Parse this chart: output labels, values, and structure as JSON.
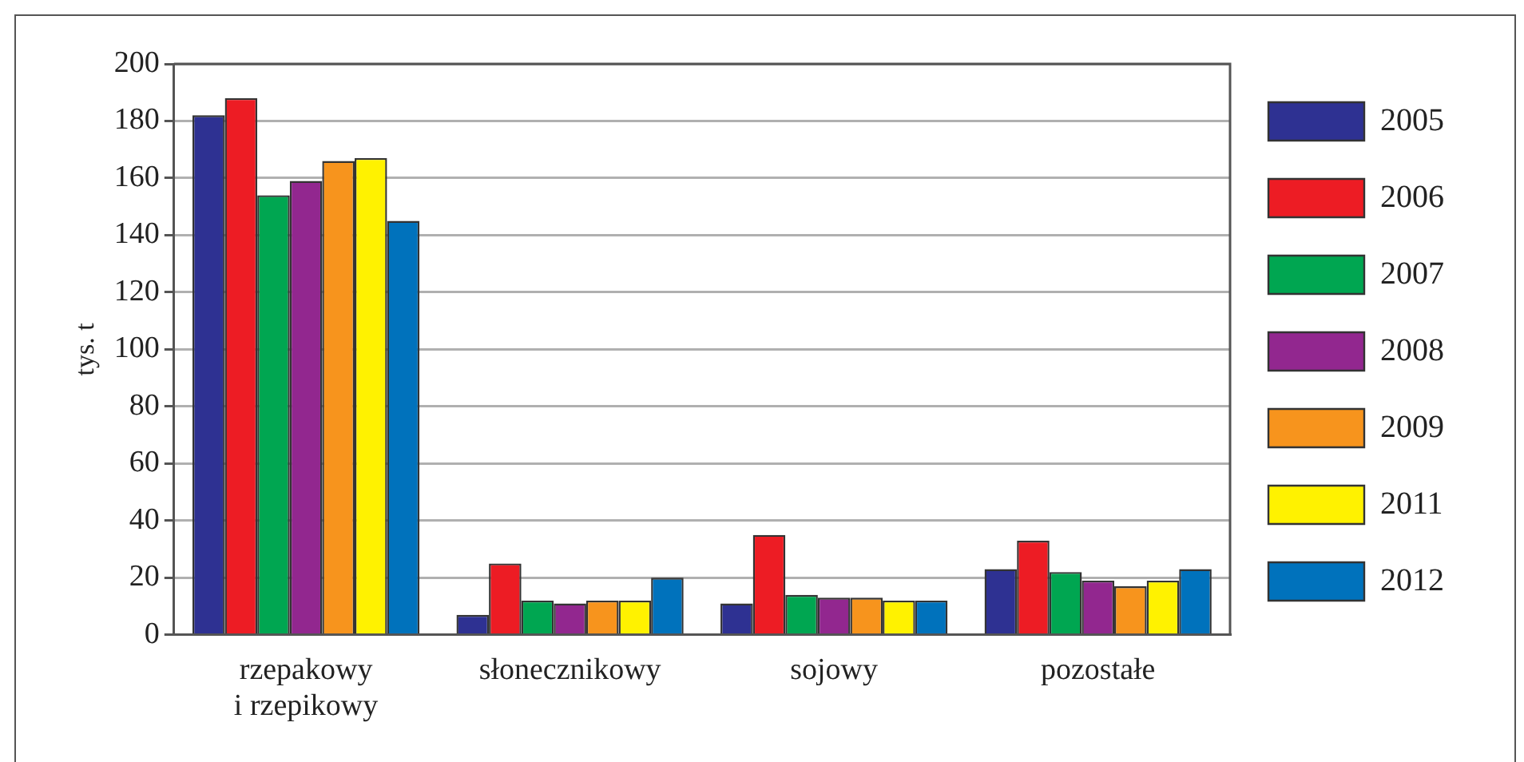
{
  "chart_data": {
    "type": "bar",
    "ylabel": "tys. t",
    "categories": [
      "rzepakowy\ni rzepikowy",
      "słonecznikowy",
      "sojowy",
      "pozostałe"
    ],
    "series": [
      {
        "name": "2005",
        "color": "#2e3192",
        "values": [
          182,
          7,
          11,
          23
        ]
      },
      {
        "name": "2006",
        "color": "#ed1c24",
        "values": [
          188,
          25,
          35,
          33
        ]
      },
      {
        "name": "2007",
        "color": "#00a651",
        "values": [
          154,
          12,
          14,
          22
        ]
      },
      {
        "name": "2008",
        "color": "#92278f",
        "values": [
          159,
          11,
          13,
          19
        ]
      },
      {
        "name": "2009",
        "color": "#f7941d",
        "values": [
          166,
          12,
          13,
          17
        ]
      },
      {
        "name": "2011",
        "color": "#fff200",
        "values": [
          167,
          12,
          12,
          19
        ]
      },
      {
        "name": "2012",
        "color": "#0072bc",
        "values": [
          145,
          20,
          12,
          23
        ]
      }
    ],
    "ylim": [
      0,
      200
    ],
    "yticks": [
      0,
      20,
      40,
      60,
      80,
      100,
      120,
      140,
      160,
      180,
      200
    ],
    "grid": "y",
    "legend": "right"
  }
}
